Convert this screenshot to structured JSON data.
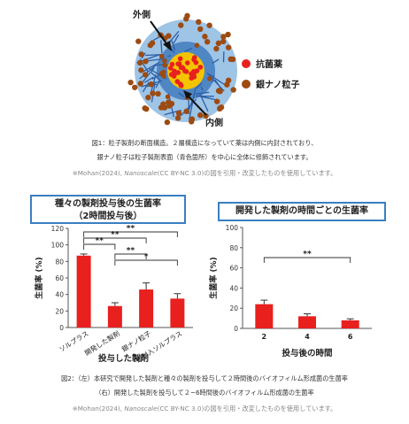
{
  "figure1": {
    "label_outer": "外側",
    "label_inner": "内側",
    "legend": [
      {
        "label": "抗菌薬",
        "color": "#e8201e"
      },
      {
        "label": "銀ナノ粒子",
        "color": "#9c4b12"
      }
    ],
    "caption_line1": "図1：粒子製剤の断面構造。２層構造になっていて薬は内側に内封されており、",
    "caption_line2": "銀ナノ粒子は粒子製剤表面（青色箇所）を中心に全体に修飾されています。",
    "credit_prefix": "※Mohan(2024), ",
    "credit_journal": "Nanoscale",
    "credit_suffix": "(CC BY-NC 3.0)の図を引用・改変したものを使用しています。"
  },
  "chart_data": [
    {
      "type": "bar",
      "title_line1": "種々の製剤投与後の生菌率",
      "title_line2": "（2時間投与後）",
      "ylabel": "生菌率 (%)",
      "xlabel": "投与した製剤",
      "ylim": [
        0,
        120
      ],
      "yticks": [
        "0",
        "20",
        "40",
        "60",
        "80",
        "100",
        "120"
      ],
      "categories": [
        "ソルプラス",
        "開発した製剤",
        "銀ナノ粒子",
        "銀封入ソルプラス"
      ],
      "values": [
        87,
        26,
        46,
        35
      ],
      "errors": [
        2,
        4,
        8,
        6
      ],
      "color": "#e8201e",
      "significance": [
        {
          "from": 0,
          "to": 1,
          "label": "**"
        },
        {
          "from": 0,
          "to": 2,
          "label": "**"
        },
        {
          "from": 0,
          "to": 3,
          "label": "**"
        },
        {
          "from": 1,
          "to": 2,
          "label": "**"
        },
        {
          "from": 1,
          "to": 3,
          "label": "*"
        }
      ]
    },
    {
      "type": "bar",
      "title_line1": "開発した製剤の時間ごとの生菌率",
      "ylabel": "生菌率 (%)",
      "xlabel": "投与後の時間",
      "ylim": [
        0,
        100
      ],
      "yticks": [
        "0",
        "20",
        "40",
        "60",
        "80",
        "100"
      ],
      "categories": [
        "2",
        "4",
        "6"
      ],
      "values": [
        24,
        12,
        8
      ],
      "errors": [
        4,
        2.5,
        1.5
      ],
      "color": "#e8201e",
      "significance": [
        {
          "from": 0,
          "to": 2,
          "label": "**"
        }
      ]
    }
  ],
  "figure2": {
    "caption_line1": "図2：（左）本研究で開発した製剤と種々の製剤を投与して２時間後のバイオフィルム形成菌の生菌率",
    "caption_line2": "（右）開発した製剤を投与して２~6時間後のバイオフィルム形成菌の生菌率",
    "credit_prefix": "※Mohan(2024), ",
    "credit_journal": "Nanoscale",
    "credit_suffix": "(CC BY-NC 3.0)の図を引用・改変したものを使用しています。"
  }
}
